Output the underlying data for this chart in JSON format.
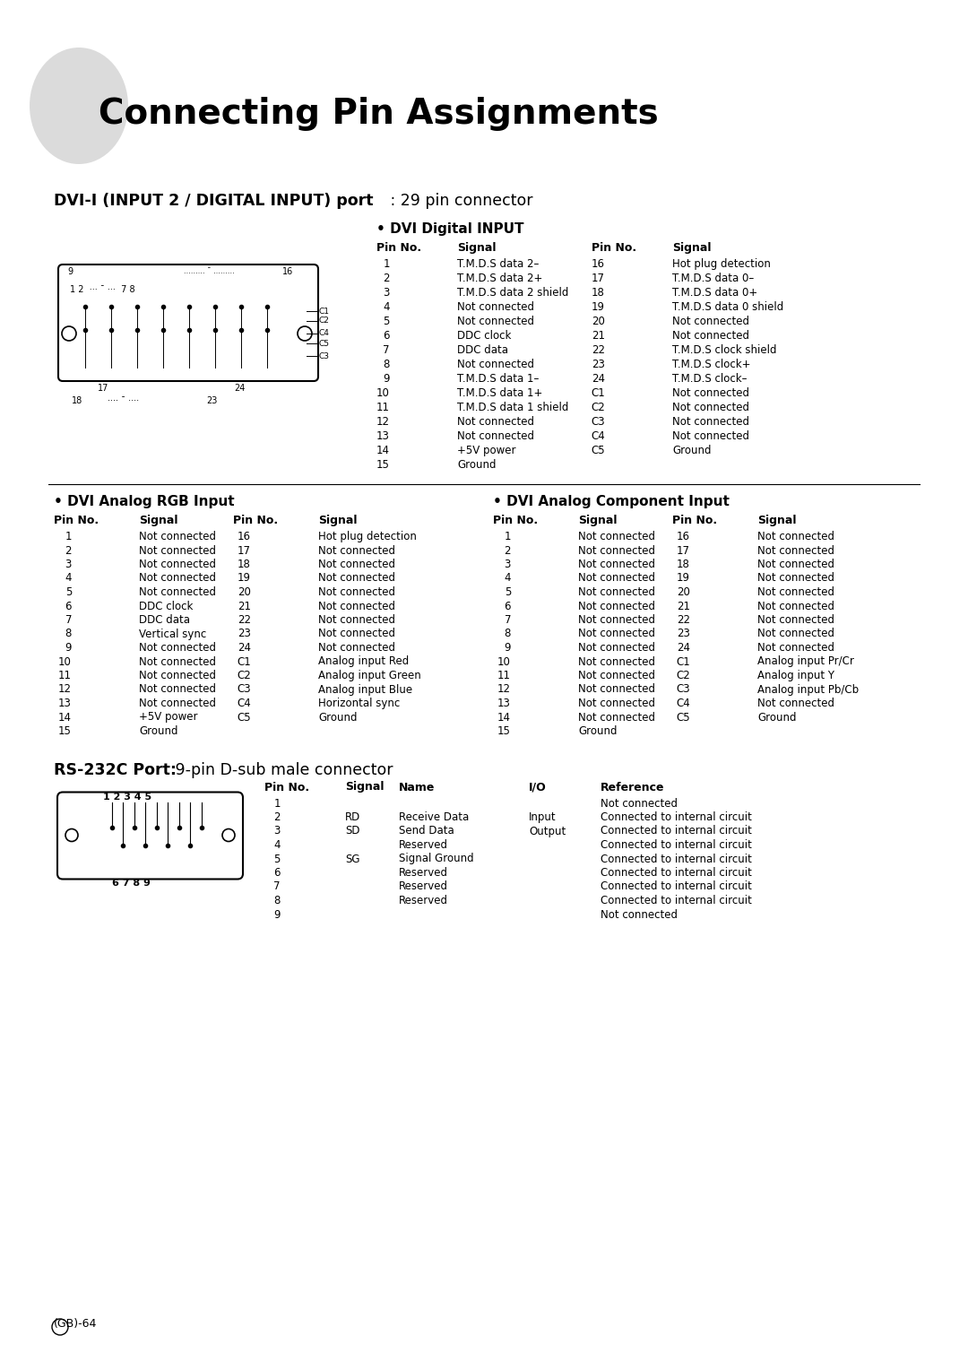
{
  "title": "Connecting Pin Assignments",
  "bg_color": "#ffffff",
  "section1_bold": "DVI-I (INPUT 2 / DIGITAL INPUT) port",
  "section1_normal": " : 29 pin connector",
  "subsection1": "• DVI Digital INPUT",
  "dvi_digital_headers": [
    "Pin No.",
    "Signal",
    "Pin No.",
    "Signal"
  ],
  "dvi_digital_left": [
    [
      "1",
      "T.M.D.S data 2–"
    ],
    [
      "2",
      "T.M.D.S data 2+"
    ],
    [
      "3",
      "T.M.D.S data 2 shield"
    ],
    [
      "4",
      "Not connected"
    ],
    [
      "5",
      "Not connected"
    ],
    [
      "6",
      "DDC clock"
    ],
    [
      "7",
      "DDC data"
    ],
    [
      "8",
      "Not connected"
    ],
    [
      "9",
      "T.M.D.S data 1–"
    ],
    [
      "10",
      "T.M.D.S data 1+"
    ],
    [
      "11",
      "T.M.D.S data 1 shield"
    ],
    [
      "12",
      "Not connected"
    ],
    [
      "13",
      "Not connected"
    ],
    [
      "14",
      "+5V power"
    ],
    [
      "15",
      "Ground"
    ]
  ],
  "dvi_digital_right": [
    [
      "16",
      "Hot plug detection"
    ],
    [
      "17",
      "T.M.D.S data 0–"
    ],
    [
      "18",
      "T.M.D.S data 0+"
    ],
    [
      "19",
      "T.M.D.S data 0 shield"
    ],
    [
      "20",
      "Not connected"
    ],
    [
      "21",
      "Not connected"
    ],
    [
      "22",
      "T.M.D.S clock shield"
    ],
    [
      "23",
      "T.M.D.S clock+"
    ],
    [
      "24",
      "T.M.D.S clock–"
    ],
    [
      "C1",
      "Not connected"
    ],
    [
      "C2",
      "Not connected"
    ],
    [
      "C3",
      "Not connected"
    ],
    [
      "C4",
      "Not connected"
    ],
    [
      "C5",
      "Ground"
    ]
  ],
  "subsection2": "• DVI Analog RGB Input",
  "dvi_rgb_headers": [
    "Pin No.",
    "Signal",
    "Pin No.",
    "Signal"
  ],
  "dvi_rgb_left": [
    [
      "1",
      "Not connected"
    ],
    [
      "2",
      "Not connected"
    ],
    [
      "3",
      "Not connected"
    ],
    [
      "4",
      "Not connected"
    ],
    [
      "5",
      "Not connected"
    ],
    [
      "6",
      "DDC clock"
    ],
    [
      "7",
      "DDC data"
    ],
    [
      "8",
      "Vertical sync"
    ],
    [
      "9",
      "Not connected"
    ],
    [
      "10",
      "Not connected"
    ],
    [
      "11",
      "Not connected"
    ],
    [
      "12",
      "Not connected"
    ],
    [
      "13",
      "Not connected"
    ],
    [
      "14",
      "+5V power"
    ],
    [
      "15",
      "Ground"
    ]
  ],
  "dvi_rgb_right": [
    [
      "16",
      "Hot plug detection"
    ],
    [
      "17",
      "Not connected"
    ],
    [
      "18",
      "Not connected"
    ],
    [
      "19",
      "Not connected"
    ],
    [
      "20",
      "Not connected"
    ],
    [
      "21",
      "Not connected"
    ],
    [
      "22",
      "Not connected"
    ],
    [
      "23",
      "Not connected"
    ],
    [
      "24",
      "Not connected"
    ],
    [
      "C1",
      "Analog input Red"
    ],
    [
      "C2",
      "Analog input Green"
    ],
    [
      "C3",
      "Analog input Blue"
    ],
    [
      "C4",
      "Horizontal sync"
    ],
    [
      "C5",
      "Ground"
    ]
  ],
  "subsection3": "• DVI Analog Component Input",
  "dvi_comp_headers": [
    "Pin No.",
    "Signal",
    "Pin No.",
    "Signal"
  ],
  "dvi_comp_left": [
    [
      "1",
      "Not connected"
    ],
    [
      "2",
      "Not connected"
    ],
    [
      "3",
      "Not connected"
    ],
    [
      "4",
      "Not connected"
    ],
    [
      "5",
      "Not connected"
    ],
    [
      "6",
      "Not connected"
    ],
    [
      "7",
      "Not connected"
    ],
    [
      "8",
      "Not connected"
    ],
    [
      "9",
      "Not connected"
    ],
    [
      "10",
      "Not connected"
    ],
    [
      "11",
      "Not connected"
    ],
    [
      "12",
      "Not connected"
    ],
    [
      "13",
      "Not connected"
    ],
    [
      "14",
      "Not connected"
    ],
    [
      "15",
      "Ground"
    ]
  ],
  "dvi_comp_right": [
    [
      "16",
      "Not connected"
    ],
    [
      "17",
      "Not connected"
    ],
    [
      "18",
      "Not connected"
    ],
    [
      "19",
      "Not connected"
    ],
    [
      "20",
      "Not connected"
    ],
    [
      "21",
      "Not connected"
    ],
    [
      "22",
      "Not connected"
    ],
    [
      "23",
      "Not connected"
    ],
    [
      "24",
      "Not connected"
    ],
    [
      "C1",
      "Analog input Pr/Cr"
    ],
    [
      "C2",
      "Analog input Y"
    ],
    [
      "C3",
      "Analog input Pb/Cb"
    ],
    [
      "C4",
      "Not connected"
    ],
    [
      "C5",
      "Ground"
    ]
  ],
  "section2_bold": "RS-232C Port:",
  "section2_normal": " 9-pin D-sub male connector",
  "rs232_headers": [
    "Pin No.",
    "Signal",
    "Name",
    "I/O",
    "Reference"
  ],
  "rs232_rows": [
    [
      "1",
      "",
      "",
      "",
      "Not connected"
    ],
    [
      "2",
      "RD",
      "Receive Data",
      "Input",
      "Connected to internal circuit"
    ],
    [
      "3",
      "SD",
      "Send Data",
      "Output",
      "Connected to internal circuit"
    ],
    [
      "4",
      "",
      "Reserved",
      "",
      "Connected to internal circuit"
    ],
    [
      "5",
      "SG",
      "Signal Ground",
      "",
      "Connected to internal circuit"
    ],
    [
      "6",
      "",
      "Reserved",
      "",
      "Connected to internal circuit"
    ],
    [
      "7",
      "",
      "Reserved",
      "",
      "Connected to internal circuit"
    ],
    [
      "8",
      "",
      "Reserved",
      "",
      "Connected to internal circuit"
    ],
    [
      "9",
      "",
      "",
      "",
      "Not connected"
    ]
  ],
  "page_num": "(GB)-64"
}
